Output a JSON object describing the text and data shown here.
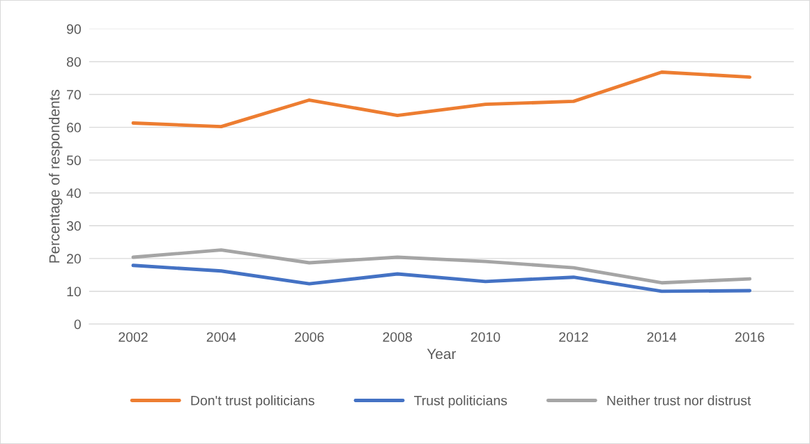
{
  "chart_data": {
    "type": "line",
    "xlabel": "Year",
    "ylabel": "Percentage of respondents",
    "categories": [
      "2002",
      "2004",
      "2006",
      "2008",
      "2010",
      "2012",
      "2014",
      "2016"
    ],
    "series": [
      {
        "name": "Don't trust politicians",
        "color": "#ed7d31",
        "values": [
          61.3,
          60.2,
          68.3,
          63.6,
          67.0,
          67.9,
          76.8,
          75.3
        ]
      },
      {
        "name": "Trust politicians",
        "color": "#4472c4",
        "values": [
          17.9,
          16.2,
          12.3,
          15.3,
          13.0,
          14.3,
          10.0,
          10.2
        ]
      },
      {
        "name": "Neither trust nor distrust",
        "color": "#a5a5a5",
        "values": [
          20.4,
          22.6,
          18.7,
          20.4,
          19.1,
          17.2,
          12.6,
          13.8
        ]
      }
    ],
    "ylim": [
      0,
      90
    ],
    "yticks": [
      0,
      10,
      20,
      30,
      40,
      50,
      60,
      70,
      80,
      90
    ],
    "grid": "y",
    "legend": "bottom",
    "marker": "none",
    "line_style": "solid"
  }
}
